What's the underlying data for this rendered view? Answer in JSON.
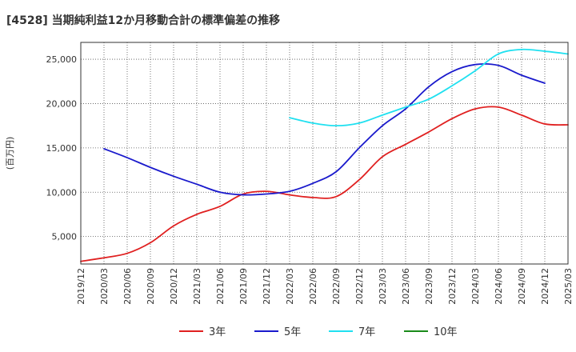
{
  "chart_data": {
    "type": "line",
    "title": "[4528]  当期純利益12か月移動合計の標準偏差の推移",
    "ylabel": "(百万円)",
    "xlabel": "",
    "ylim": [
      1900,
      26900
    ],
    "yticks": [
      5000,
      10000,
      15000,
      20000,
      25000
    ],
    "ytick_labels": [
      "5,000",
      "10,000",
      "15,000",
      "20,000",
      "25,000"
    ],
    "x_categories": [
      "2019/12",
      "2020/03",
      "2020/06",
      "2020/09",
      "2020/12",
      "2021/03",
      "2021/06",
      "2021/09",
      "2021/12",
      "2022/03",
      "2022/06",
      "2022/09",
      "2022/12",
      "2023/03",
      "2023/06",
      "2023/09",
      "2023/12",
      "2024/03",
      "2024/06",
      "2024/09",
      "2024/12",
      "2025/03"
    ],
    "grid": true,
    "legend_position": "bottom",
    "series": [
      {
        "name": "3年",
        "color": "#e02020",
        "values": [
          2200,
          2600,
          3100,
          4300,
          6200,
          7500,
          8400,
          9800,
          10100,
          9700,
          9400,
          9500,
          11400,
          14000,
          15400,
          16800,
          18300,
          19400,
          19600,
          18700,
          17700,
          17600
        ]
      },
      {
        "name": "5年",
        "color": "#1a1acc",
        "values": [
          null,
          14900,
          13900,
          12800,
          11800,
          10900,
          10000,
          9700,
          9800,
          10100,
          11000,
          12300,
          15000,
          17500,
          19400,
          21900,
          23600,
          24400,
          24300,
          23200,
          22300,
          null
        ]
      },
      {
        "name": "7年",
        "color": "#20e0f0",
        "values": [
          null,
          null,
          null,
          null,
          null,
          null,
          null,
          null,
          null,
          18400,
          17800,
          17500,
          17800,
          18700,
          19600,
          20500,
          22000,
          23700,
          25600,
          26100,
          25900,
          25600
        ]
      },
      {
        "name": "10年",
        "color": "#1a8a1a",
        "values": []
      }
    ]
  }
}
